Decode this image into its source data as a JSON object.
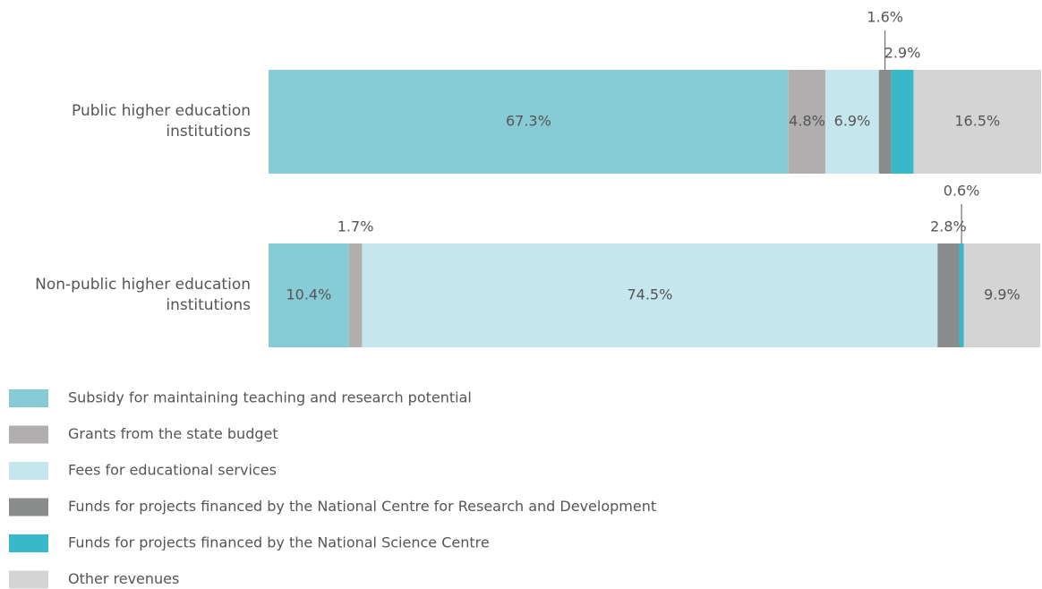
{
  "chart_data": {
    "type": "stacked-bar-horizontal",
    "categories": [
      "Public higher education institutions",
      "Non-public higher education institutions"
    ],
    "xlim": [
      0,
      100
    ],
    "series": [
      {
        "name": "Subsidy for maintaining teaching and research potential",
        "color": "#86cbd6",
        "values": [
          67.3,
          10.4
        ],
        "value_labels": [
          "67.3%",
          "10.4%"
        ]
      },
      {
        "name": "Grants from the state budget",
        "color": "#b0aeae",
        "values": [
          4.8,
          1.7
        ],
        "value_labels": [
          "4.8%",
          "1.7%"
        ]
      },
      {
        "name": "Fees for educational services",
        "color": "#c5e6ec",
        "values": [
          6.9,
          74.5
        ],
        "value_labels": [
          "6.9%",
          "74.5%"
        ]
      },
      {
        "name": "Funds for projects financed by the National Centre for Research and Development",
        "color": "#8a8c8c",
        "values": [
          1.6,
          2.8
        ],
        "value_labels": [
          "1.6%",
          "2.8%"
        ]
      },
      {
        "name": "Funds for projects financed by the National Science Centre",
        "color": "#38b8c8",
        "values": [
          2.9,
          0.6
        ],
        "value_labels": [
          "2.9%",
          "0.6%"
        ]
      },
      {
        "name": "Other revenues",
        "color": "#d4d4d4",
        "values": [
          16.5,
          9.9
        ],
        "value_labels": [
          "16.5%",
          "9.9%"
        ]
      }
    ]
  }
}
